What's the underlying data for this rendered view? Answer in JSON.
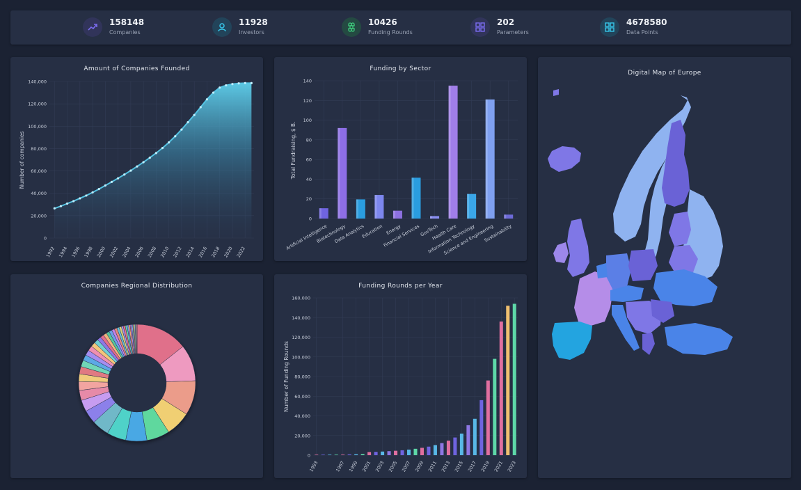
{
  "stats": [
    {
      "value": "158148",
      "label": "Companies",
      "icon": "trending-up-icon",
      "color": "#7b6cf0",
      "bg": "#31345a"
    },
    {
      "value": "11928",
      "label": "Investors",
      "icon": "user-icon",
      "color": "#37c6e8",
      "bg": "#22445a"
    },
    {
      "value": "10426",
      "label": "Funding Rounds",
      "icon": "command-icon",
      "color": "#3fd07e",
      "bg": "#244a42"
    },
    {
      "value": "202",
      "label": "Parameters",
      "icon": "grid-icon",
      "color": "#7b6cf0",
      "bg": "#31345a"
    },
    {
      "value": "4678580",
      "label": "Data Points",
      "icon": "grid-icon",
      "color": "#37c6e8",
      "bg": "#22445a"
    }
  ],
  "panels": {
    "companies_title": "Amount of Companies Founded",
    "sector_title": "Funding by Sector",
    "region_title": "Companies Regional Distribution",
    "rounds_title": "Funding Rounds per Year",
    "map_title": "Digital Map of Europe"
  },
  "chart_data": [
    {
      "type": "area",
      "title": "Amount of Companies Founded",
      "xlabel": "",
      "ylabel": "Number of companies",
      "ylim": [
        0,
        140000
      ],
      "yticks": [
        0,
        20000,
        40000,
        60000,
        80000,
        100000,
        120000,
        140000
      ],
      "ytick_labels": [
        "0",
        "20,000",
        "40,000",
        "60,000",
        "80,000",
        "100,000",
        "120,000",
        "140,000"
      ],
      "xticks": [
        1992,
        1994,
        1996,
        1998,
        2000,
        2002,
        2004,
        2006,
        2008,
        2010,
        2012,
        2014,
        2016,
        2018,
        2020,
        2022
      ],
      "x": [
        1992,
        1993,
        1994,
        1995,
        1996,
        1997,
        1998,
        1999,
        2000,
        2001,
        2002,
        2003,
        2004,
        2005,
        2006,
        2007,
        2008,
        2009,
        2010,
        2011,
        2012,
        2013,
        2014,
        2015,
        2016,
        2017,
        2018,
        2019,
        2020,
        2021,
        2022,
        2023
      ],
      "values": [
        26500,
        28500,
        30800,
        33000,
        35500,
        38000,
        40800,
        43800,
        47000,
        50200,
        53400,
        56800,
        60300,
        64000,
        67800,
        71800,
        76000,
        80500,
        85500,
        91000,
        97000,
        103500,
        110000,
        117000,
        124000,
        130000,
        134500,
        136500,
        137700,
        138300,
        138500,
        138500
      ],
      "line_color": "#56c4e3",
      "grid": true
    },
    {
      "type": "bar",
      "title": "Funding by Sector",
      "xlabel": "",
      "ylabel": "Total Fundraising, $ B.",
      "ylim": [
        0,
        140
      ],
      "yticks": [
        0,
        20,
        40,
        60,
        80,
        100,
        120,
        140
      ],
      "categories": [
        "Artificial Intelligence",
        "Biotechnology",
        "Data Analytics",
        "Education",
        "Energy",
        "Financial Services",
        "GovTech",
        "Health Care",
        "Information Technology",
        "Science and Engineering",
        "Sustainability"
      ],
      "values": [
        10.5,
        92,
        19.5,
        24,
        8,
        41.5,
        2.5,
        135,
        25,
        121,
        4
      ],
      "colors": [
        "#6f64e0",
        "#8d6ee6",
        "#2a9de0",
        "#7d87ee",
        "#8c70e0",
        "#2a9de0",
        "#8a8ef2",
        "#a07ee8",
        "#3aa6e8",
        "#7fa0f0",
        "#6d6ad8"
      ],
      "grid": true
    },
    {
      "type": "pie",
      "title": "Companies Regional Distribution",
      "values": [
        13.5,
        9.5,
        9,
        6.5,
        6,
        5.5,
        5,
        4.5,
        3.5,
        3,
        2.6,
        2.3,
        2,
        1.9,
        1.7,
        1.5,
        1.4,
        1.3,
        1.2,
        1.1,
        1,
        0.9,
        0.9,
        0.8,
        0.8,
        0.7,
        0.7,
        0.6,
        0.6,
        0.5,
        0.5,
        0.5,
        0.4,
        0.4,
        0.4,
        0.3,
        0.3,
        0.3,
        0.3,
        0.2
      ],
      "colors": [
        "#e06f8a",
        "#ee9ac0",
        "#eb9c8a",
        "#f0cf73",
        "#5ed89e",
        "#4aa8e4",
        "#4fd2c8",
        "#6fb8c8",
        "#8c80ea",
        "#c79cf0",
        "#e68aa8",
        "#f2a4a0",
        "#f1cc7c",
        "#e07a82",
        "#6fd6b7",
        "#5ba9e6",
        "#a58df0",
        "#ef8fb1",
        "#f3c57a",
        "#6fcfd1",
        "#8e77e4",
        "#e46d8c",
        "#f0b27d",
        "#57c59b",
        "#6d9fe7",
        "#c283e8",
        "#e5897d",
        "#66bfd8",
        "#d6d07a",
        "#a88fe8",
        "#e9728a",
        "#5fcfb0",
        "#7f96ec",
        "#f0a86e",
        "#c07ed8",
        "#6bc0e0",
        "#e5839c",
        "#8ed48b",
        "#a78ae2",
        "#e8b370"
      ],
      "donut": true
    },
    {
      "type": "bar",
      "title": "Funding Rounds per Year",
      "xlabel": "",
      "ylabel": "Number of Funding Rounds",
      "ylim": [
        0,
        160000
      ],
      "yticks": [
        0,
        20000,
        40000,
        60000,
        80000,
        100000,
        120000,
        140000,
        160000
      ],
      "ytick_labels": [
        "0",
        "20,000",
        "40,000",
        "60,000",
        "80,000",
        "100,000",
        "120,000",
        "140,000",
        "160,000"
      ],
      "xticks": [
        1993,
        1997,
        1999,
        2001,
        2003,
        2005,
        2007,
        2009,
        2011,
        2013,
        2015,
        2017,
        2019,
        2021,
        2023
      ],
      "categories": [
        1993,
        1994,
        1995,
        1996,
        1997,
        1998,
        1999,
        2000,
        2001,
        2002,
        2003,
        2004,
        2005,
        2006,
        2007,
        2008,
        2009,
        2010,
        2011,
        2012,
        2013,
        2014,
        2015,
        2016,
        2017,
        2018,
        2019,
        2020,
        2021,
        2022,
        2023
      ],
      "values": [
        200,
        300,
        400,
        500,
        600,
        800,
        1000,
        1200,
        3200,
        3400,
        3700,
        4100,
        4500,
        5000,
        5700,
        6500,
        7500,
        8700,
        10300,
        12300,
        14800,
        18000,
        22000,
        30500,
        37000,
        56000,
        76000,
        98000,
        136000,
        152000,
        154000
      ],
      "colors": [
        "#e06fa0",
        "#6f64e0",
        "#58b8e6",
        "#5ed8a8",
        "#e06fa0",
        "#6f64e0",
        "#58b8e6",
        "#5ed8a8",
        "#e06fa0",
        "#6f64e0",
        "#58b8e6",
        "#8e77e4",
        "#e06fa0",
        "#6f64e0",
        "#58b8e6",
        "#5ed8a8",
        "#e06fa0",
        "#6f64e0",
        "#58b8e6",
        "#8e77e4",
        "#e06fa0",
        "#6f64e0",
        "#58b8e6",
        "#8e77e4",
        "#58b8e6",
        "#6f64e0",
        "#e06fa0",
        "#5ed8a8",
        "#e06fa0",
        "#f0c070",
        "#5ed8a8"
      ],
      "grid": true
    }
  ],
  "map": {
    "colors": [
      "#8fb3f0",
      "#7f77e6",
      "#6a62d6",
      "#b58de8",
      "#23a4e0",
      "#4a84e8",
      "#5b7fe6",
      "#9d88ea"
    ]
  }
}
